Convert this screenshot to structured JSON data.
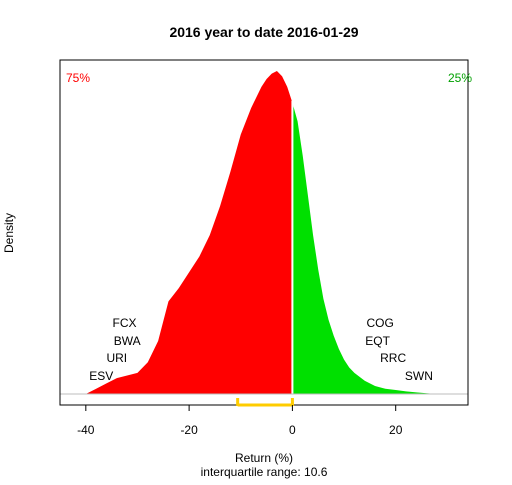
{
  "chart_data": {
    "type": "area",
    "title": "2016  year to date 2016-01-29",
    "xlabel": "Return (%)",
    "ylabel": "Density",
    "subtitle": "interquartile range: 10.6",
    "xlim": [
      -45,
      34
    ],
    "x_ticks": [
      -40,
      -20,
      0,
      20
    ],
    "split_x": 0,
    "left_share_label": "75%",
    "right_share_label": "25%",
    "left_color": "#ff0000",
    "right_color": "#00e000",
    "iqr_color": "#ffcc00",
    "iqr": [
      -10.6,
      0
    ],
    "density": {
      "x": [
        -40,
        -38,
        -36,
        -34,
        -32,
        -30,
        -28,
        -26,
        -24,
        -22,
        -20,
        -18,
        -16,
        -14,
        -12,
        -10,
        -8,
        -6,
        -5,
        -4,
        -3,
        -2,
        -1,
        0,
        1,
        2,
        3,
        4,
        5,
        6,
        7,
        8,
        9,
        10,
        11,
        12,
        14,
        16,
        18,
        20,
        22,
        24,
        26,
        28
      ],
      "y": [
        0.0,
        0.002,
        0.004,
        0.006,
        0.007,
        0.008,
        0.012,
        0.02,
        0.035,
        0.04,
        0.046,
        0.052,
        0.06,
        0.071,
        0.084,
        0.098,
        0.108,
        0.116,
        0.119,
        0.121,
        0.122,
        0.12,
        0.116,
        0.11,
        0.103,
        0.09,
        0.075,
        0.06,
        0.047,
        0.036,
        0.028,
        0.022,
        0.017,
        0.013,
        0.01,
        0.008,
        0.005,
        0.003,
        0.002,
        0.0015,
        0.001,
        0.0006,
        0.0003,
        0.0
      ]
    },
    "left_tickers": [
      {
        "label": "FCX",
        "x": -32.5
      },
      {
        "label": "BWA",
        "x": -32.0
      },
      {
        "label": "URI",
        "x": -34.0
      },
      {
        "label": "ESV",
        "x": -37.0
      }
    ],
    "right_tickers": [
      {
        "label": "COG",
        "x": 17.0
      },
      {
        "label": "EQT",
        "x": 16.5
      },
      {
        "label": "RRC",
        "x": 19.5
      },
      {
        "label": "SWN",
        "x": 24.5
      }
    ]
  }
}
